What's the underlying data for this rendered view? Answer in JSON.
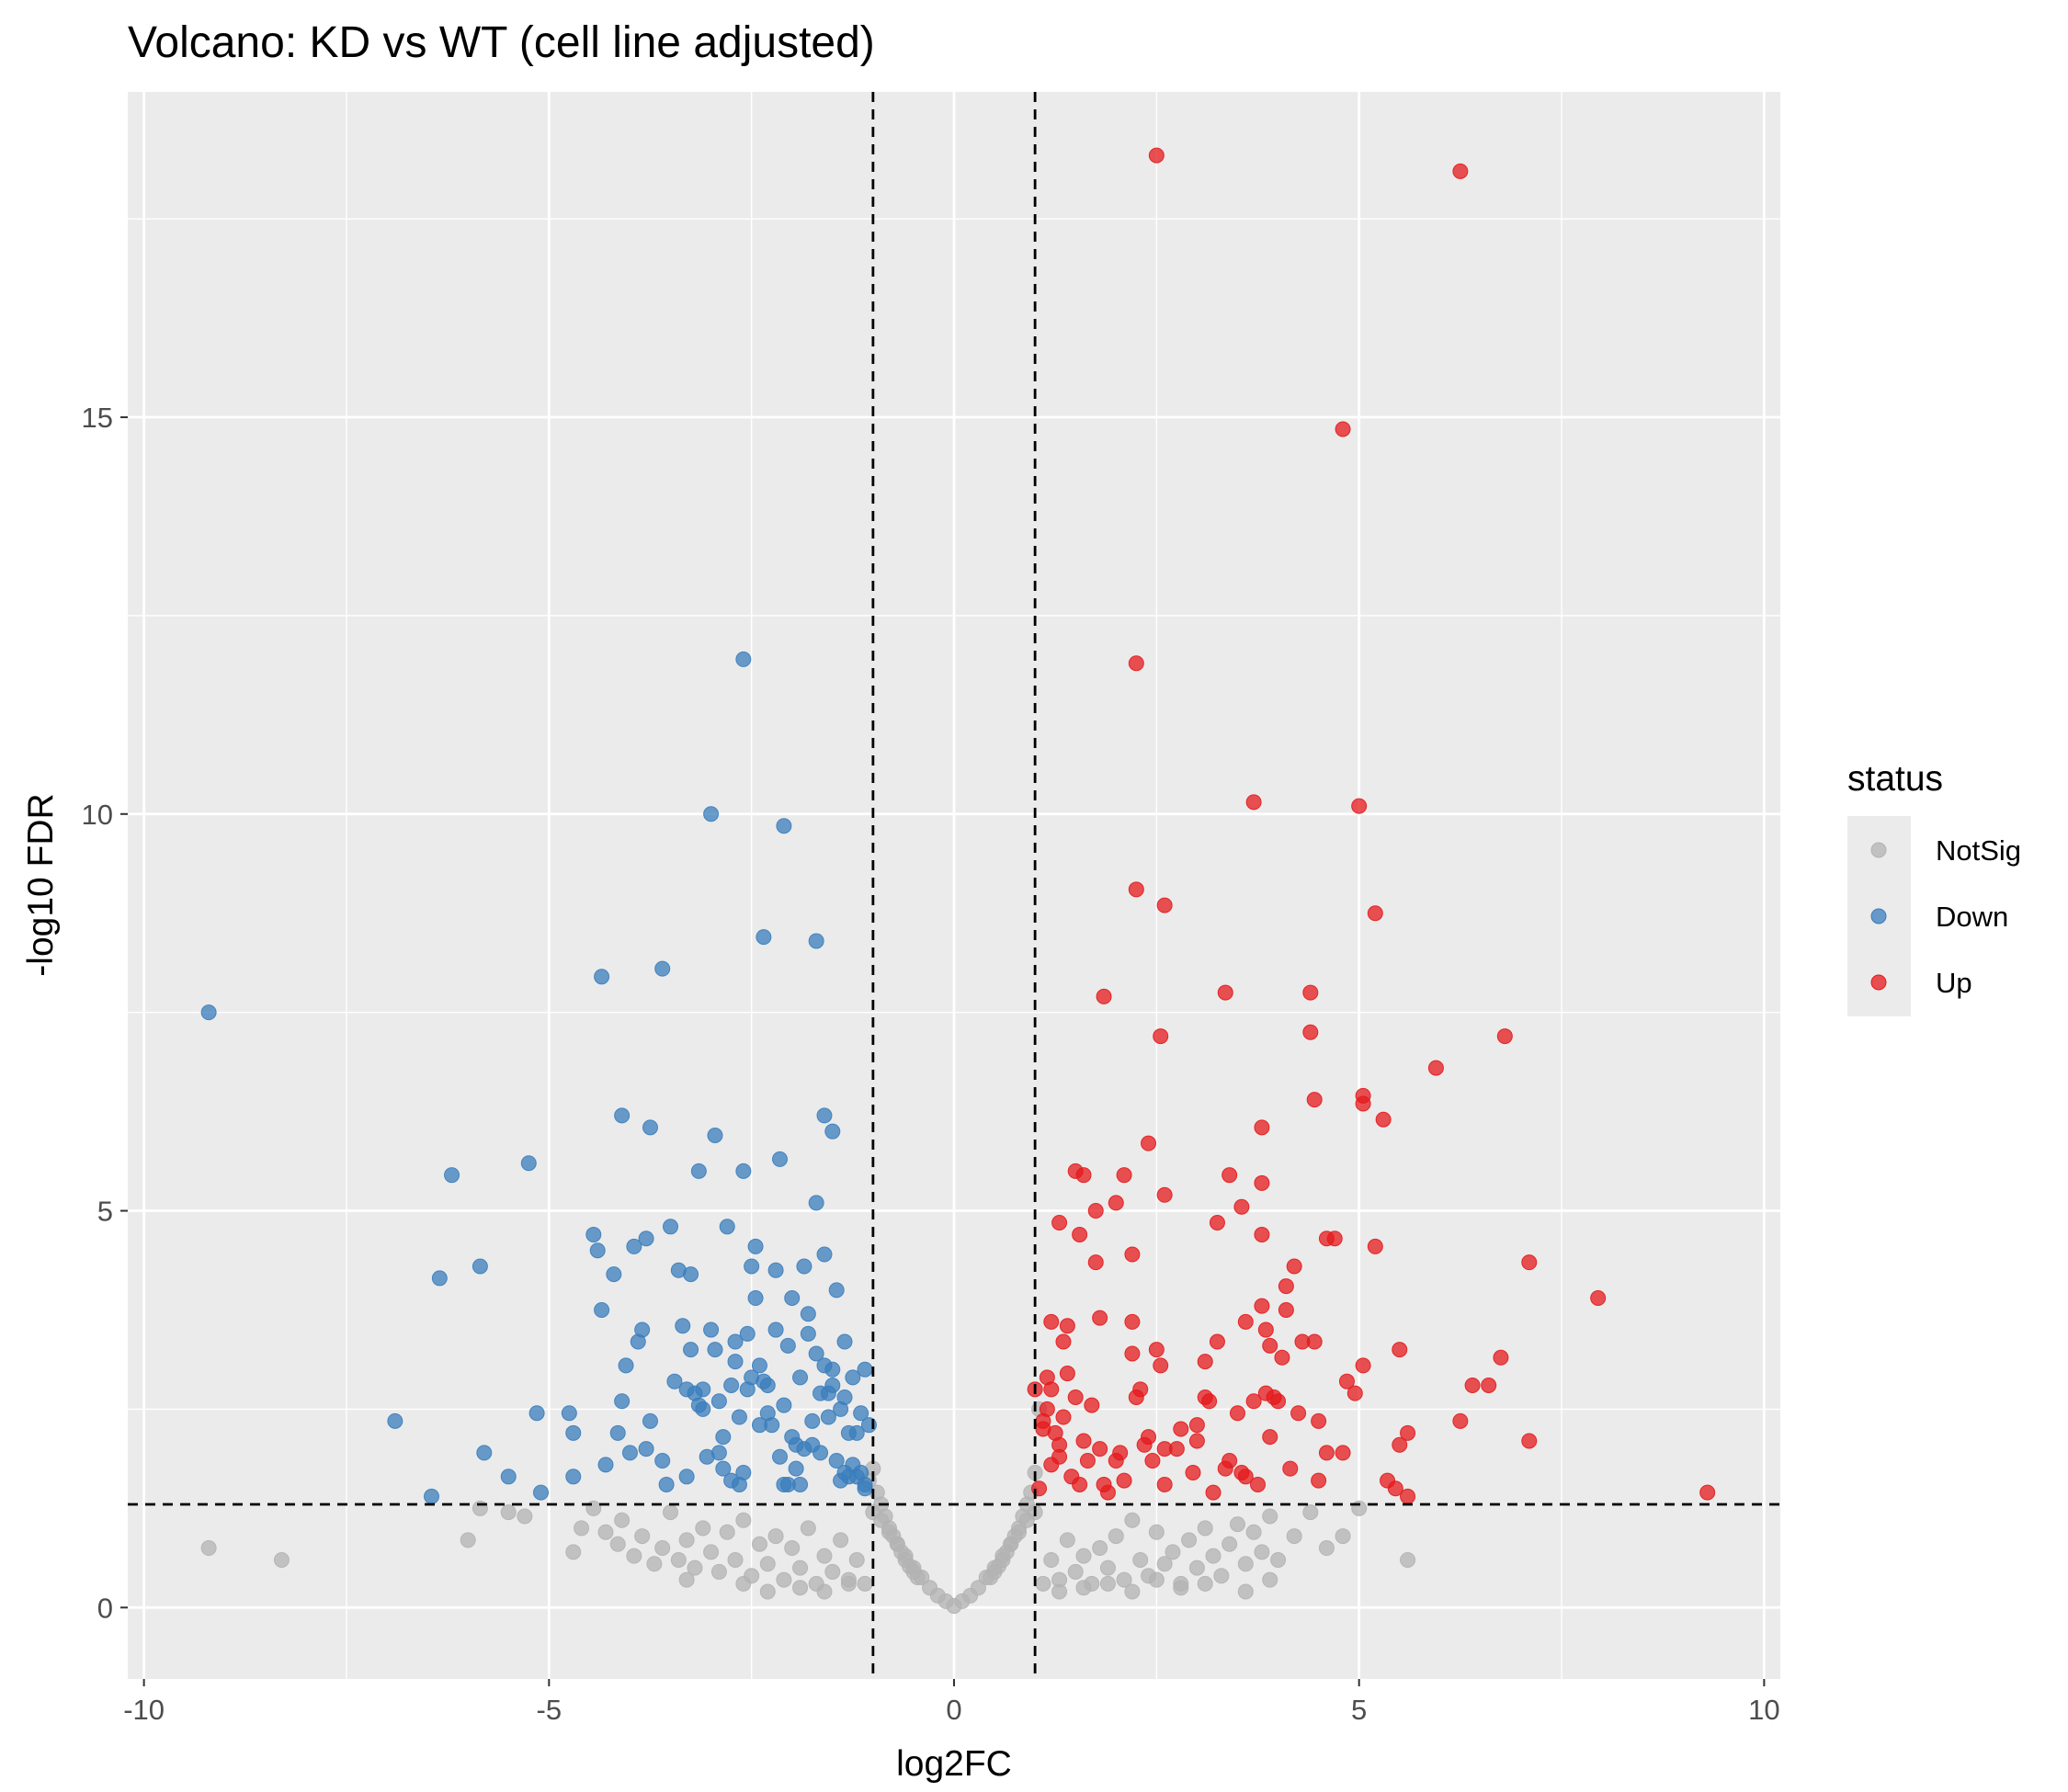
{
  "chart_data": {
    "type": "scatter",
    "title": "Volcano: KD vs WT (cell line adjusted)",
    "xlabel": "log2FC",
    "ylabel": "-log10 FDR",
    "xlim": [
      -10.2,
      10.2
    ],
    "ylim": [
      -0.9,
      19.1
    ],
    "x_ticks": [
      -10,
      -5,
      0,
      5,
      10
    ],
    "x_tick_labels": [
      "-10",
      "-5",
      "0",
      "5",
      "10"
    ],
    "y_ticks": [
      0,
      5,
      10,
      15
    ],
    "y_tick_labels": [
      "0",
      "5",
      "10",
      "15"
    ],
    "grid": true,
    "legend_position": "right",
    "legend_title": "status",
    "thresholds": {
      "log2fc": [
        -1,
        1
      ],
      "neg_log10_fdr": 1.3
    },
    "colors": {
      "Down": "#3A7DBC",
      "NotSig": "#B3B3B3",
      "Up": "#E41A1C",
      "panel": "#EBEBEB",
      "grid": "#FFFFFF"
    },
    "series": [
      {
        "name": "Down",
        "x": [
          -9.2,
          -6.9,
          -6.45,
          -6.35,
          -6.2,
          -5.85,
          -5.8,
          -5.5,
          -5.25,
          -5.15,
          -5.1,
          -4.75,
          -4.7,
          -4.7,
          -4.45,
          -4.4,
          -4.35,
          -4.3,
          -4.2,
          -4.15,
          -4.1,
          -4.05,
          -4.0,
          -3.95,
          -3.85,
          -3.8,
          -3.75,
          -3.6,
          -3.55,
          -3.4,
          -3.35,
          -3.3,
          -3.25,
          -3.2,
          -3.15,
          -3.1,
          -3.05,
          -3.0,
          -2.95,
          -2.9,
          -2.85,
          -2.8,
          -2.75,
          -2.7,
          -2.65,
          -2.6,
          -2.55,
          -2.5,
          -2.45,
          -2.4,
          -2.3,
          -2.2,
          -2.15,
          -2.1,
          -2.05,
          -2.0,
          -1.95,
          -1.9,
          -1.85,
          -1.8,
          -1.75,
          -1.7,
          -1.65,
          -1.6,
          -1.55,
          -1.5,
          -1.45,
          -1.4,
          -1.35,
          -1.3,
          -1.25,
          -1.2,
          -1.15,
          -1.1,
          -1.05,
          -3.0,
          -2.6,
          -2.1,
          -2.35,
          -1.7,
          -4.35,
          -3.6,
          -4.1,
          -3.75,
          -2.95,
          -2.6,
          -2.15,
          -1.6,
          -1.5,
          -1.7,
          -3.5,
          -3.25,
          -2.5,
          -2.2,
          -1.8,
          -1.45,
          -3.9,
          -3.3,
          -2.75,
          -2.0,
          -1.6,
          -3.1,
          -2.45,
          -1.95,
          -1.35,
          -3.8,
          -2.9,
          -2.3,
          -1.85,
          -1.25,
          -3.45,
          -2.65,
          -2.05,
          -1.55,
          -1.15,
          -3.15,
          -2.85,
          -2.4,
          -1.75,
          -1.3,
          -2.25,
          -1.9,
          -1.65,
          -1.4,
          -1.2,
          -1.1,
          -2.7,
          -2.55,
          -2.35,
          -2.1,
          -1.5,
          -1.35,
          -1.1
        ],
        "y": [
          7.5,
          2.35,
          1.4,
          4.15,
          5.45,
          4.3,
          1.95,
          1.65,
          5.6,
          2.45,
          1.45,
          2.45,
          2.2,
          1.65,
          4.7,
          4.5,
          3.75,
          1.8,
          4.2,
          2.2,
          2.6,
          3.05,
          1.95,
          4.55,
          3.5,
          4.65,
          2.35,
          1.85,
          1.55,
          4.25,
          3.55,
          1.65,
          3.25,
          2.7,
          5.5,
          2.5,
          1.9,
          3.5,
          3.25,
          2.6,
          2.15,
          4.8,
          1.6,
          3.35,
          2.4,
          1.7,
          3.45,
          2.9,
          4.55,
          2.3,
          2.8,
          3.5,
          1.9,
          2.55,
          3.3,
          2.15,
          1.75,
          2.9,
          4.3,
          3.45,
          2.05,
          3.2,
          1.95,
          4.45,
          2.7,
          3.0,
          1.85,
          2.5,
          3.35,
          2.2,
          2.9,
          1.65,
          2.45,
          3.0,
          2.3,
          10.0,
          11.95,
          9.85,
          8.45,
          8.4,
          7.95,
          8.05,
          6.2,
          6.05,
          5.95,
          5.5,
          5.65,
          6.2,
          6.0,
          5.1,
          4.8,
          4.2,
          4.3,
          4.25,
          3.7,
          4.0,
          3.35,
          2.75,
          2.8,
          3.9,
          3.05,
          2.75,
          3.9,
          2.05,
          1.7,
          2.0,
          1.95,
          2.45,
          2.0,
          1.8,
          2.85,
          1.55,
          1.55,
          2.4,
          1.7,
          2.55,
          1.75,
          3.05,
          2.35,
          1.65,
          2.3,
          1.55,
          2.7,
          1.6,
          2.2,
          1.55,
          3.1,
          2.75,
          2.85,
          1.55,
          2.8,
          2.65,
          1.5
        ]
      },
      {
        "name": "NotSig",
        "x": [
          -9.2,
          -8.3,
          -6.0,
          -5.85,
          -5.5,
          -5.3,
          -4.7,
          -4.6,
          -4.45,
          -4.3,
          -4.15,
          -4.1,
          -3.95,
          -3.85,
          -3.7,
          -3.6,
          -3.5,
          -3.4,
          -3.3,
          -3.2,
          -3.1,
          -3.0,
          -2.9,
          -2.8,
          -2.7,
          -2.6,
          -2.5,
          -2.4,
          -2.3,
          -2.2,
          -2.1,
          -2.0,
          -1.9,
          -1.8,
          -1.7,
          -1.6,
          -1.5,
          -1.4,
          -1.3,
          -1.2,
          -1.1,
          -1.0,
          -0.9,
          -0.8,
          -0.7,
          -0.6,
          -0.5,
          -0.4,
          -0.3,
          -0.2,
          -0.1,
          0.0,
          0.1,
          0.2,
          0.3,
          0.4,
          0.5,
          0.6,
          0.7,
          0.8,
          0.9,
          1.0,
          1.1,
          1.2,
          1.3,
          1.4,
          1.5,
          1.6,
          1.7,
          1.8,
          1.9,
          2.0,
          2.1,
          2.2,
          2.3,
          2.4,
          2.5,
          2.6,
          2.7,
          2.8,
          2.9,
          3.0,
          3.1,
          3.2,
          3.3,
          3.4,
          3.5,
          3.6,
          3.7,
          3.8,
          3.9,
          4.0,
          4.2,
          4.4,
          4.6,
          4.8,
          5.0,
          5.6,
          -1.05,
          -1.0,
          -0.95,
          -0.9,
          -0.85,
          -0.8,
          -0.75,
          -0.7,
          -0.65,
          -0.6,
          -0.55,
          -0.5,
          -0.45,
          0.45,
          0.5,
          0.55,
          0.6,
          0.65,
          0.7,
          0.75,
          0.8,
          0.85,
          0.9,
          0.95,
          1.0,
          1.05,
          -2.3,
          -1.9,
          -1.6,
          -1.3,
          -2.6,
          -3.3,
          1.3,
          1.6,
          1.9,
          2.2,
          2.5,
          2.8,
          3.1,
          3.6,
          3.9
        ],
        "y": [
          0.75,
          0.6,
          0.85,
          1.25,
          1.2,
          1.15,
          0.7,
          1.0,
          1.25,
          0.95,
          0.8,
          1.1,
          0.65,
          0.9,
          0.55,
          0.75,
          1.2,
          0.6,
          0.85,
          0.5,
          1.0,
          0.7,
          0.45,
          0.95,
          0.6,
          1.1,
          0.4,
          0.8,
          0.55,
          0.9,
          0.35,
          0.75,
          0.5,
          1.0,
          0.3,
          0.65,
          0.45,
          0.85,
          0.35,
          0.6,
          0.3,
          1.2,
          1.1,
          0.95,
          0.8,
          0.65,
          0.5,
          0.38,
          0.25,
          0.15,
          0.08,
          0.02,
          0.08,
          0.15,
          0.25,
          0.38,
          0.5,
          0.65,
          0.8,
          0.95,
          1.1,
          1.2,
          0.3,
          0.6,
          0.35,
          0.85,
          0.45,
          0.65,
          0.3,
          0.75,
          0.5,
          0.9,
          0.35,
          1.1,
          0.6,
          0.4,
          0.95,
          0.55,
          0.7,
          0.3,
          0.85,
          0.5,
          1.0,
          0.65,
          0.4,
          0.8,
          1.05,
          0.55,
          0.95,
          0.7,
          1.15,
          0.6,
          0.9,
          1.2,
          0.75,
          0.9,
          1.25,
          0.6,
          1.6,
          1.75,
          1.45,
          1.3,
          1.15,
          1.0,
          0.9,
          0.8,
          0.7,
          0.6,
          0.52,
          0.45,
          0.38,
          0.38,
          0.45,
          0.52,
          0.6,
          0.7,
          0.8,
          0.9,
          1.0,
          1.15,
          1.3,
          1.45,
          1.7,
          2.5,
          0.2,
          0.25,
          0.2,
          0.3,
          0.3,
          0.35,
          0.2,
          0.25,
          0.3,
          0.2,
          0.35,
          0.25,
          0.3,
          0.2,
          0.35
        ]
      },
      {
        "name": "Up",
        "x": [
          2.5,
          6.25,
          4.8,
          2.25,
          3.7,
          5.0,
          2.25,
          2.6,
          5.2,
          1.85,
          3.35,
          4.4,
          2.55,
          4.4,
          6.8,
          5.95,
          5.05,
          4.45,
          5.05,
          3.8,
          5.3,
          2.4,
          1.5,
          1.6,
          2.1,
          3.4,
          3.8,
          3.55,
          2.0,
          1.75,
          2.6,
          3.25,
          1.3,
          1.55,
          2.2,
          3.8,
          4.7,
          4.6,
          5.2,
          2.2,
          1.2,
          1.4,
          1.8,
          3.8,
          7.1,
          4.2,
          4.1,
          1.75,
          7.95,
          3.25,
          3.85,
          4.1,
          3.6,
          2.5,
          1.35,
          2.2,
          2.55,
          4.3,
          5.5,
          3.9,
          4.05,
          1.15,
          1.4,
          3.1,
          4.45,
          2.3,
          5.05,
          6.75,
          3.15,
          6.6,
          6.4,
          4.95,
          3.7,
          3.85,
          3.1,
          4.85,
          2.25,
          1.2,
          3.5,
          4.0,
          4.5,
          6.25,
          5.6,
          3.9,
          2.8,
          1.6,
          1.3,
          3.0,
          4.6,
          5.5,
          2.6,
          1.1,
          7.1,
          4.8,
          3.4,
          2.0,
          1.2,
          9.3,
          5.35,
          5.45,
          5.6,
          3.6,
          4.5,
          3.75,
          3.2,
          2.6,
          1.9,
          1.05,
          3.35,
          2.45,
          1.45,
          2.95,
          4.15,
          2.1,
          1.65,
          1.85,
          1.25,
          2.75,
          3.55,
          1.35,
          1.7,
          2.35,
          3.0,
          4.25,
          1.1,
          2.4,
          1.5,
          3.95,
          1.0,
          1.3,
          1.8,
          1.15,
          2.05,
          1.55
        ],
        "y": [
          18.3,
          18.1,
          14.85,
          11.9,
          10.15,
          10.1,
          9.05,
          8.85,
          8.75,
          7.7,
          7.75,
          7.75,
          7.2,
          7.25,
          7.2,
          6.8,
          6.45,
          6.4,
          6.35,
          6.05,
          6.15,
          5.85,
          5.5,
          5.45,
          5.45,
          5.45,
          5.35,
          5.05,
          5.1,
          5.0,
          5.2,
          4.85,
          4.85,
          4.7,
          4.45,
          4.7,
          4.65,
          4.65,
          4.55,
          3.6,
          3.6,
          3.55,
          3.65,
          3.8,
          4.35,
          4.3,
          4.05,
          4.35,
          3.9,
          3.35,
          3.5,
          3.75,
          3.6,
          3.25,
          3.35,
          3.2,
          3.05,
          3.35,
          3.25,
          3.3,
          3.15,
          2.9,
          2.95,
          3.1,
          3.35,
          2.75,
          3.05,
          3.15,
          2.6,
          2.8,
          2.8,
          2.7,
          2.6,
          2.7,
          2.65,
          2.85,
          2.65,
          2.75,
          2.45,
          2.6,
          2.35,
          2.35,
          2.2,
          2.15,
          2.25,
          2.1,
          2.05,
          2.1,
          1.95,
          2.05,
          2.0,
          2.25,
          2.1,
          1.95,
          1.85,
          1.85,
          1.8,
          1.45,
          1.6,
          1.5,
          1.4,
          1.65,
          1.6,
          1.55,
          1.45,
          1.55,
          1.45,
          1.5,
          1.75,
          1.85,
          1.65,
          1.7,
          1.75,
          1.6,
          1.85,
          1.55,
          2.2,
          2.0,
          1.7,
          2.4,
          2.55,
          2.05,
          2.3,
          2.45,
          2.35,
          2.15,
          2.65,
          2.65,
          2.75,
          1.9,
          2.0,
          2.5,
          1.95,
          1.55
        ]
      }
    ]
  }
}
